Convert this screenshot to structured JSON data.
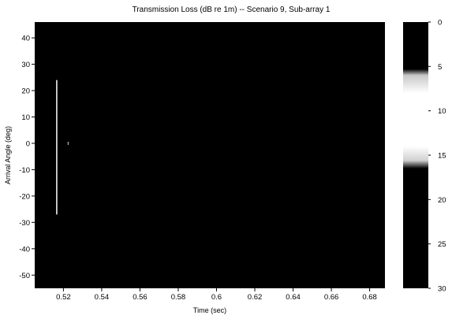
{
  "chart_data": {
    "type": "heatmap",
    "title": "Transmission Loss (dB re 1m) -- Scenario 9, Sub-array 1",
    "xlabel": "Time (sec)",
    "ylabel": "Arrival Angle (deg)",
    "xlim": [
      0.505,
      0.688
    ],
    "ylim": [
      -55,
      46
    ],
    "xticks": [
      0.52,
      0.54,
      0.56,
      0.58,
      0.6,
      0.62,
      0.64,
      0.66,
      0.68
    ],
    "xtick_labels": [
      "0.52",
      "0.54",
      "0.56",
      "0.58",
      "0.6",
      "0.62",
      "0.64",
      "0.66",
      "0.68"
    ],
    "yticks": [
      40,
      30,
      20,
      10,
      0,
      -10,
      -20,
      -30,
      -40,
      -50
    ],
    "ytick_labels": [
      "40",
      "30",
      "20",
      "10",
      "0",
      "-10",
      "-20",
      "-30",
      "-40",
      "-50"
    ],
    "colorbar": {
      "range": [
        0,
        30
      ],
      "ticks": [
        0,
        5,
        10,
        15,
        20,
        25,
        30
      ],
      "tick_labels": [
        "0",
        "5",
        "10",
        "15",
        "20",
        "25",
        "30"
      ],
      "colormap": [
        {
          "value": 0,
          "color": "#000000"
        },
        {
          "value": 5.3,
          "color": "#000000"
        },
        {
          "value": 6,
          "color": "#c8c8c8"
        },
        {
          "value": 8,
          "color": "#ffffff"
        },
        {
          "value": 14,
          "color": "#ffffff"
        },
        {
          "value": 15.6,
          "color": "#d0d0d0"
        },
        {
          "value": 16.5,
          "color": "#000000"
        },
        {
          "value": 30,
          "color": "#000000"
        }
      ]
    },
    "background_color": "#000000",
    "features": [
      {
        "name": "arrival",
        "time": 0.5165,
        "angle_min": -27,
        "angle_max": 24,
        "time_width": 0.0006,
        "color": "#ffffff"
      },
      {
        "name": "weak-arrival",
        "time": 0.5225,
        "angle_min": -0.6,
        "angle_max": 0.6,
        "time_width": 0.0006,
        "color": "#9a9a9a"
      }
    ]
  }
}
